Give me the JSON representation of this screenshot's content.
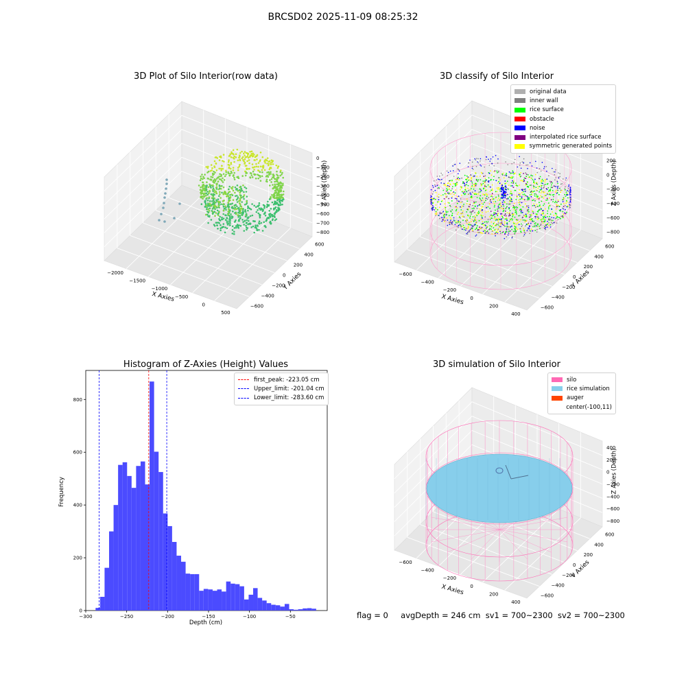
{
  "suptitle": "BRCSD02 2025-11-09 08:25:32",
  "footer": {
    "flag": "flag = 0",
    "avg_depth": "avgDepth = 246 cm",
    "sv1": "sv1 = 700~2300",
    "sv2": "sv2 = 700~2300"
  },
  "colors": {
    "histogram_bar": "#4b4bff",
    "peak_line": "#ff0000",
    "limit_line": "#0000ff",
    "silo": "#ff69b4",
    "rice_simulation": "#87ceeb",
    "auger": "#ff4500",
    "original_data": "#b0b0b0",
    "inner_wall": "#808080",
    "rice_surface": "#00ff00",
    "obstacle": "#ff0000",
    "noise": "#0000ff",
    "interpolated_rice_surface": "#800080",
    "symmetric_generated_points": "#ffff00"
  },
  "chart_data": [
    {
      "type": "scatter",
      "title": "3D Plot of Silo Interior(row data)",
      "xlabel": "X Axies",
      "ylabel": "Y Axies",
      "zlabel": "Z Axies (Depth)",
      "x_ticks": [
        "−2000",
        "−1500",
        "−1000",
        "−500",
        "0",
        "500"
      ],
      "y_ticks": [
        "−600",
        "−400",
        "−200",
        "0",
        "200",
        "400",
        "600"
      ],
      "z_ticks": [
        "0",
        "−100",
        "−200",
        "−300",
        "−400",
        "−500",
        "−600",
        "−700",
        "−800"
      ]
    },
    {
      "type": "scatter",
      "title": "3D classify of Silo Interior",
      "xlabel": "X Axies",
      "ylabel": "Y Axies",
      "zlabel": "Z Axies (Depth)",
      "x_ticks": [
        "−600",
        "−400",
        "−200",
        "0",
        "200",
        "400"
      ],
      "y_ticks": [
        "−600",
        "−400",
        "−200",
        "0",
        "200",
        "400",
        "600"
      ],
      "z_ticks": [
        "200",
        "0",
        "−200",
        "−400",
        "−600",
        "−800"
      ],
      "legend": [
        "original data",
        "inner wall",
        "rice surface",
        "obstacle",
        "noise",
        "interpolated rice surface",
        "symmetric generated points"
      ]
    },
    {
      "type": "bar",
      "title": "Histogram of Z-Axies (Height) Values",
      "xlabel": "Depth (cm)",
      "ylabel": "Frequency",
      "xlim": [
        -300,
        -5
      ],
      "ylim": [
        0,
        910
      ],
      "x_ticks": [
        -300,
        -250,
        -200,
        -150,
        -100,
        -50
      ],
      "y_ticks": [
        0,
        200,
        400,
        600,
        800
      ],
      "bin_start": -288,
      "bin_width": 5.5,
      "values": [
        10,
        52,
        162,
        300,
        400,
        552,
        562,
        510,
        465,
        548,
        565,
        478,
        868,
        602,
        525,
        368,
        320,
        260,
        208,
        185,
        140,
        138,
        138,
        75,
        82,
        80,
        75,
        80,
        72,
        110,
        102,
        100,
        92,
        42,
        60,
        85,
        48,
        38,
        28,
        22,
        20,
        15,
        25,
        5,
        3,
        5,
        8,
        9,
        7
      ],
      "lines": [
        {
          "label": "first_peak: -223.05 cm",
          "x": -223.05,
          "color": "#ff0000"
        },
        {
          "label": "Upper_limit: -201.04 cm",
          "x": -201.04,
          "color": "#0000ff"
        },
        {
          "label": "Lower_limit: -283.60 cm",
          "x": -283.6,
          "color": "#0000ff"
        }
      ]
    },
    {
      "type": "scatter",
      "title": "3D simulation of Silo Interior",
      "xlabel": "X Axies",
      "ylabel": "Y Axies",
      "zlabel": "Z Axies (Depth)",
      "x_ticks": [
        "−600",
        "−400",
        "−200",
        "0",
        "200",
        "400"
      ],
      "y_ticks": [
        "−600",
        "−400",
        "−200",
        "0",
        "200",
        "400",
        "600"
      ],
      "z_ticks": [
        "400",
        "200",
        "0",
        "−200",
        "−400",
        "−600",
        "−800"
      ],
      "legend": [
        "silo",
        "rice simulation",
        "auger",
        "center(-100,11)"
      ]
    }
  ]
}
